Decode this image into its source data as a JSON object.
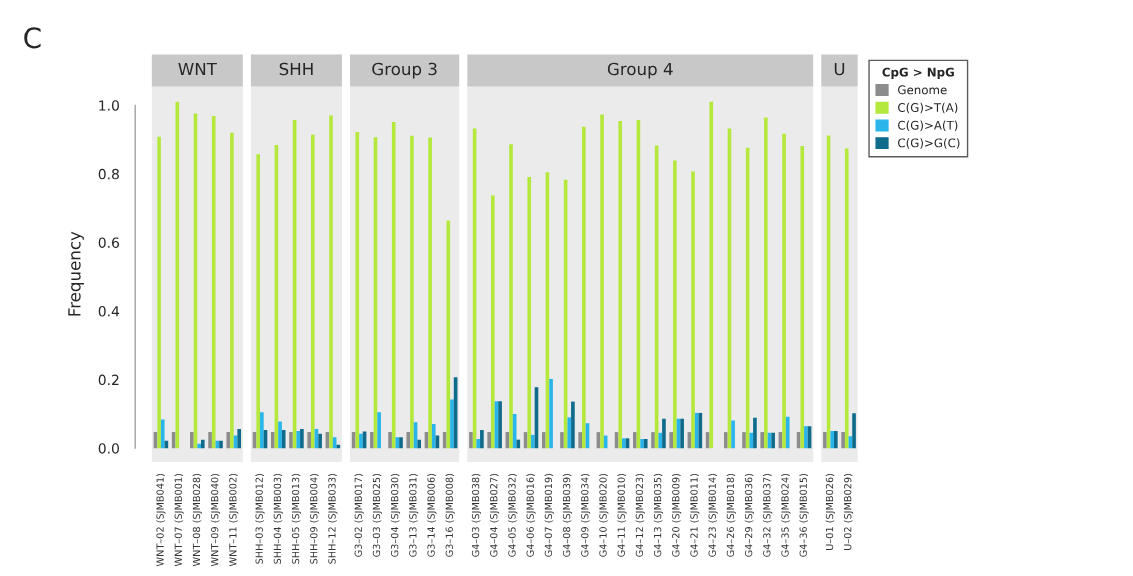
{
  "chart_data": [
    {
      "type": "bar",
      "title": "WNT",
      "ylabel": "Frequency",
      "annotations": [
        "C"
      ],
      "tick_labels": true,
      "ylim": [
        -0.04,
        1.055
      ],
      "yticks": [
        {
          "value": 0,
          "label": "0.0"
        },
        0.2,
        0.4,
        0.6,
        0.8,
        {
          "value": 1,
          "label": "1.0"
        }
      ],
      "categories": [
        "WNT–02 (SJMB041)",
        "WNT–07 (SJMB001)",
        "WNT–08 (SJMB028)",
        "WNT–09 (SJMB040)",
        "WNT–11 (SJMB002)"
      ],
      "series": [
        {
          "color": "#8c8c8c",
          "values": [
            0.047,
            0.047,
            0.047,
            0.047,
            0.047
          ]
        },
        {
          "color": "#b5e83c",
          "values": [
            0.908,
            1.01,
            0.976,
            0.969,
            0.92
          ]
        },
        {
          "color": "#29b5ea",
          "values": [
            0.084,
            0,
            0.013,
            0.022,
            0.037
          ]
        },
        {
          "color": "#0f6b8c",
          "values": [
            0.022,
            0,
            0.025,
            0.022,
            0.056
          ]
        }
      ]
    },
    {
      "type": "bar",
      "title": "SHH",
      "tick_labels": "x",
      "ylim": [
        -0.04,
        1.055
      ],
      "categories": [
        "SHH–03 (SJMB012)",
        "SHH–04 (SJMB003)",
        "SHH–05 (SJMB013)",
        "SHH–09 (SJMB004)",
        "SHH–12 (SJMB033)"
      ],
      "series": [
        {
          "color": "#8c8c8c",
          "values": [
            0.047,
            0.047,
            0.047,
            0.047,
            0.047
          ]
        },
        {
          "color": "#b5e83c",
          "values": [
            0.857,
            0.884,
            0.957,
            0.914,
            0.97
          ]
        },
        {
          "color": "#29b5ea",
          "values": [
            0.105,
            0.078,
            0.05,
            0.056,
            0.032
          ]
        },
        {
          "color": "#0f6b8c",
          "values": [
            0.053,
            0.053,
            0.056,
            0.042,
            0.01
          ]
        }
      ]
    },
    {
      "type": "bar",
      "title": "Group 3",
      "tick_labels": "x",
      "ylim": [
        -0.04,
        1.055
      ],
      "categories": [
        "G3–02 (SJMB017)",
        "G3–03 (SJMB025)",
        "G3–04 (SJMB030)",
        "G3–13 (SJMB031)",
        "G3–14 (SJMB006)",
        "G3–16 (SJMB008)"
      ],
      "series": [
        {
          "color": "#8c8c8c",
          "values": [
            0.047,
            0.047,
            0.047,
            0.047,
            0.047,
            0.047
          ]
        },
        {
          "color": "#b5e83c",
          "values": [
            0.922,
            0.907,
            0.951,
            0.911,
            0.906,
            0.664
          ]
        },
        {
          "color": "#29b5ea",
          "values": [
            0.042,
            0.105,
            0.032,
            0.076,
            0.071,
            0.142
          ]
        },
        {
          "color": "#0f6b8c",
          "values": [
            0.049,
            0,
            0.032,
            0.025,
            0.037,
            0.207
          ]
        }
      ]
    },
    {
      "type": "bar",
      "title": "Group 4",
      "tick_labels": "x",
      "ylim": [
        -0.04,
        1.055
      ],
      "categories": [
        "G4–03 (SJMB038)",
        "G4–04 (SJMB027)",
        "G4–05 (SJMB032)",
        "G4–06 (SJMB016)",
        "G4–07 (SJMB019)",
        "G4–08 (SJMB039)",
        "G4–09 (SJMB034)",
        "G4–10 (SJMB020)",
        "G4–11 (SJMB010)",
        "G4–12 (SJMB023)",
        "G4–13 (SJMB035)",
        "G4–20 (SJMB009)",
        "G4–21 (SJMB011)",
        "G4–23 (SJMB014)",
        "G4–26 (SJMB018)",
        "G4–29 (SJMB036)",
        "G4–32 (SJMB037)",
        "G4–35 (SJMB024)",
        "G4–36 (SJMB015)"
      ],
      "series": [
        {
          "color": "#8c8c8c",
          "values": [
            0.047,
            0.047,
            0.047,
            0.047,
            0.047,
            0.047,
            0.047,
            0.047,
            0.047,
            0.047,
            0.047,
            0.047,
            0.047,
            0.047,
            0.047,
            0.047,
            0.047,
            0.047,
            0.047
          ]
        },
        {
          "color": "#b5e83c",
          "values": [
            0.932,
            0.737,
            0.886,
            0.791,
            0.805,
            0.783,
            0.937,
            0.973,
            0.954,
            0.957,
            0.883,
            0.839,
            0.807,
            1.01,
            0.932,
            0.876,
            0.964,
            0.917,
            0.881
          ]
        },
        {
          "color": "#29b5ea",
          "values": [
            0.027,
            0.137,
            0.1,
            0.039,
            0.202,
            0.09,
            0.073,
            0.037,
            0.029,
            0.027,
            0.045,
            0.086,
            0.103,
            0,
            0.081,
            0.045,
            0.045,
            0.092,
            0.064
          ]
        },
        {
          "color": "#0f6b8c",
          "values": [
            0.053,
            0.137,
            0.025,
            0.178,
            0,
            0.136,
            0,
            0,
            0.029,
            0.027,
            0.086,
            0.086,
            0.103,
            0,
            0,
            0.089,
            0.045,
            0,
            0.064
          ]
        }
      ]
    },
    {
      "type": "bar",
      "title": "U",
      "tick_labels": "x",
      "legend": "right",
      "legend_title": "CpG > NpG",
      "ylim": [
        -0.04,
        1.055
      ],
      "categories": [
        "U–01 (SJMB026)",
        "U–02 (SJMB029)"
      ],
      "series": [
        {
          "name": "Genome",
          "color": "#8c8c8c",
          "values": [
            0.047,
            0.047
          ]
        },
        {
          "name": "C(G)>T(A)",
          "color": "#b5e83c",
          "values": [
            0.912,
            0.874
          ]
        },
        {
          "name": "C(G)>A(T)",
          "color": "#29b5ea",
          "values": [
            0.05,
            0.035
          ]
        },
        {
          "name": "C(G)>G(C)",
          "color": "#0f6b8c",
          "values": [
            0.05,
            0.102
          ]
        }
      ]
    }
  ]
}
